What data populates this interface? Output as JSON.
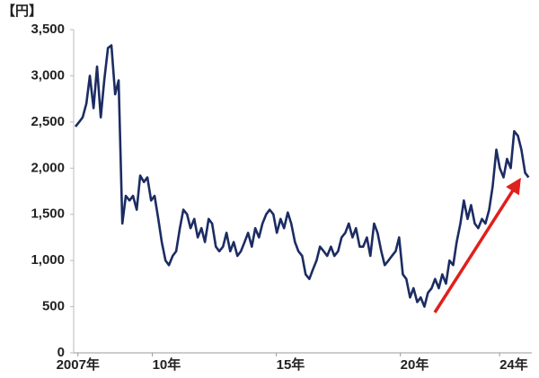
{
  "chart_data": {
    "type": "line",
    "y_label": "【円】",
    "x": [
      2006.9,
      2007.05,
      2007.19,
      2007.34,
      2007.48,
      2007.63,
      2007.77,
      2007.92,
      2008.06,
      2008.21,
      2008.35,
      2008.5,
      2008.64,
      2008.79,
      2008.93,
      2009.08,
      2009.22,
      2009.37,
      2009.51,
      2009.66,
      2009.8,
      2009.95,
      2010.09,
      2010.24,
      2010.38,
      2010.53,
      2010.67,
      2010.82,
      2010.96,
      2011.11,
      2011.25,
      2011.4,
      2011.54,
      2011.69,
      2011.83,
      2011.98,
      2012.12,
      2012.27,
      2012.41,
      2012.56,
      2012.7,
      2012.85,
      2012.99,
      2013.14,
      2013.28,
      2013.43,
      2013.57,
      2013.72,
      2013.86,
      2014.01,
      2014.15,
      2014.3,
      2014.44,
      2014.59,
      2014.73,
      2014.88,
      2015.02,
      2015.17,
      2015.31,
      2015.46,
      2015.6,
      2015.75,
      2015.89,
      2016.04,
      2016.18,
      2016.33,
      2016.47,
      2016.62,
      2016.76,
      2016.91,
      2017.05,
      2017.2,
      2017.34,
      2017.49,
      2017.63,
      2017.78,
      2017.92,
      2018.07,
      2018.21,
      2018.36,
      2018.5,
      2018.65,
      2018.79,
      2018.94,
      2019.08,
      2019.23,
      2019.37,
      2019.52,
      2019.66,
      2019.81,
      2019.95,
      2020.1,
      2020.24,
      2020.39,
      2020.53,
      2020.68,
      2020.82,
      2020.97,
      2021.11,
      2021.26,
      2021.4,
      2021.55,
      2021.69,
      2021.84,
      2021.98,
      2022.13,
      2022.27,
      2022.42,
      2022.56,
      2022.71,
      2022.85,
      2023.0,
      2023.14,
      2023.29,
      2023.43,
      2023.58,
      2023.72,
      2023.87,
      2024.01,
      2024.16,
      2024.3,
      2024.45,
      2024.59,
      2024.74,
      2024.88,
      2025.03,
      2025.17
    ],
    "series": [
      {
        "color": "#1c2c62",
        "values": [
          2450,
          2500,
          2550,
          2700,
          3000,
          2650,
          3100,
          2550,
          2950,
          3300,
          3330,
          2800,
          2950,
          1400,
          1700,
          1650,
          1700,
          1550,
          1920,
          1850,
          1900,
          1650,
          1700,
          1450,
          1200,
          1000,
          950,
          1050,
          1100,
          1350,
          1550,
          1500,
          1350,
          1450,
          1250,
          1350,
          1200,
          1450,
          1400,
          1150,
          1100,
          1150,
          1300,
          1100,
          1200,
          1050,
          1100,
          1200,
          1300,
          1150,
          1350,
          1250,
          1400,
          1500,
          1550,
          1500,
          1300,
          1450,
          1350,
          1520,
          1400,
          1200,
          1100,
          1050,
          850,
          800,
          900,
          1000,
          1150,
          1100,
          1050,
          1150,
          1050,
          1100,
          1250,
          1300,
          1400,
          1250,
          1350,
          1150,
          1150,
          1250,
          1050,
          1400,
          1300,
          1100,
          950,
          1000,
          1050,
          1100,
          1250,
          850,
          800,
          600,
          700,
          550,
          600,
          500,
          650,
          700,
          800,
          700,
          850,
          750,
          1000,
          950,
          1200,
          1400,
          1650,
          1450,
          1600,
          1400,
          1350,
          1450,
          1400,
          1550,
          1800,
          2200,
          2000,
          1900,
          2100,
          2000,
          2400,
          2350,
          2200,
          1950,
          1900
        ]
      }
    ],
    "xlim": [
      2006.9,
      2025.3
    ],
    "xticks": [
      {
        "value": 2007,
        "label": "2007年"
      },
      {
        "value": 2010,
        "label": "10年"
      },
      {
        "value": 2015,
        "label": "15年"
      },
      {
        "value": 2020,
        "label": "20年"
      },
      {
        "value": 2024,
        "label": "24年"
      }
    ],
    "ylim": [
      0,
      3500
    ],
    "yticks": [
      0,
      500,
      {
        "value": 1000,
        "label": "1,000"
      },
      {
        "value": 1500,
        "label": "1,500"
      },
      {
        "value": 2000,
        "label": "2,000"
      },
      {
        "value": 2500,
        "label": "2,500"
      },
      {
        "value": 3000,
        "label": "3,000"
      },
      {
        "value": 3500,
        "label": "3,500"
      }
    ],
    "grid": false
  }
}
